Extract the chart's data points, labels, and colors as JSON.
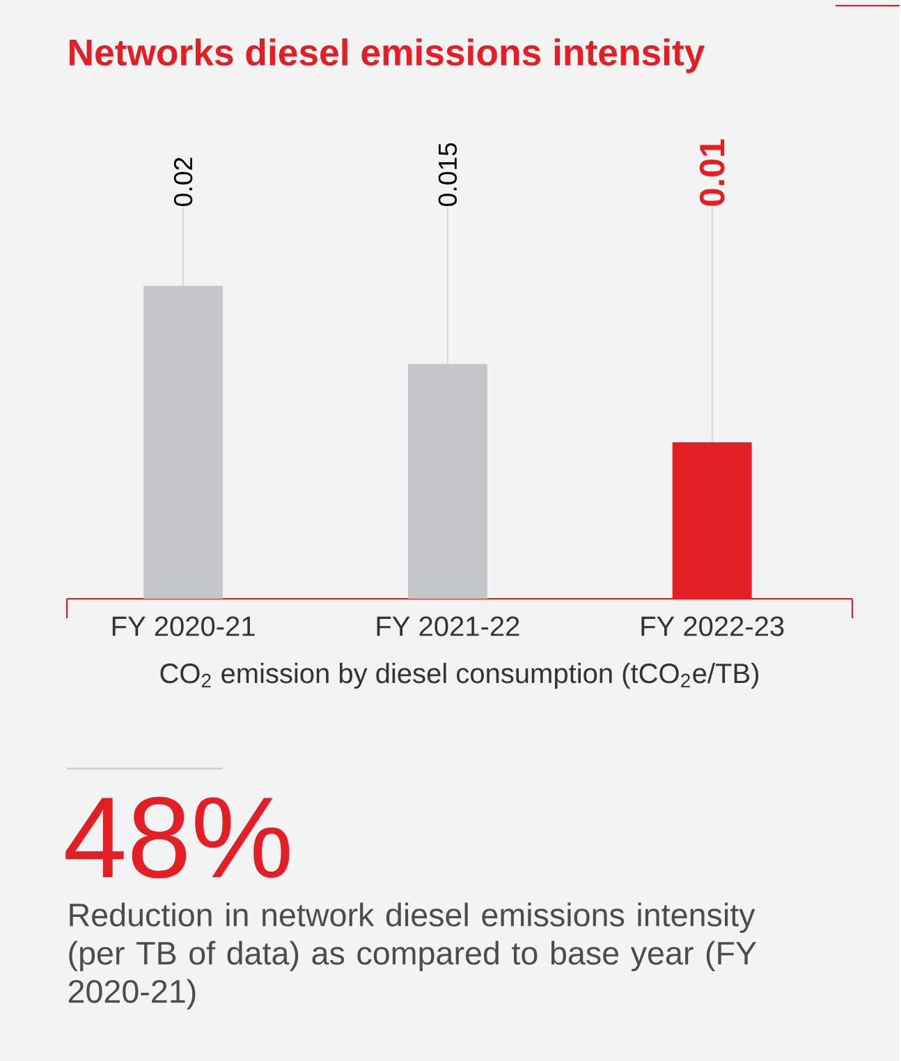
{
  "chart_data": {
    "type": "bar",
    "title": "Networks diesel emissions intensity",
    "categories": [
      "FY 2020-21",
      "FY 2021-22",
      "FY 2022-23"
    ],
    "values": [
      0.02,
      0.015,
      0.01
    ],
    "colors": [
      "#c5c6ca",
      "#c5c6ca",
      "#e31e24"
    ],
    "xlabel": "CO$_{2}$ emission by diesel consumption (tCO$_{2}$e/TB)",
    "value_labels": [
      "0.02",
      "0.015",
      "0.01"
    ],
    "tick_labels": "x",
    "grid": "x",
    "annotations": [
      "48%",
      "Reduction in network diesel emissions intensity (per TB of data) as compared to base year (FY 2020-21)"
    ]
  }
}
